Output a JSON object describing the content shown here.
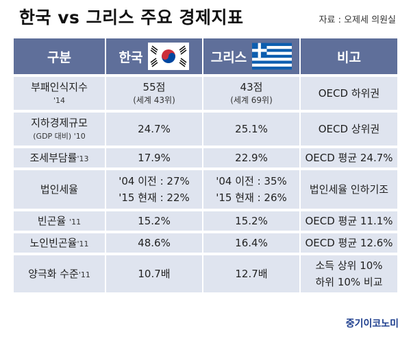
{
  "title": "한국 vs 그리스 주요 경제지표",
  "source": "자료 : 오제세 의원실",
  "brand": "중기이코노미",
  "columns": [
    "구분",
    "한국",
    "그리스",
    "비고"
  ],
  "rows": [
    {
      "label": "부패인식지수",
      "label_sub": "'14",
      "korea": "55점",
      "korea_sub": "(세계 43위)",
      "greece": "43점",
      "greece_sub": "(세계 69위)",
      "note": "OECD 하위권"
    },
    {
      "label": "지하경제규모",
      "label_sub": "(GDP 대비) '10",
      "korea": "24.7%",
      "greece": "25.1%",
      "note": "OECD 상위권"
    },
    {
      "label": "조세부담률",
      "label_sub": "'13",
      "korea": "17.9%",
      "greece": "22.9%",
      "note": "OECD 평균 24.7%"
    },
    {
      "label": "법인세율",
      "korea_1": "'04 이전 : 27%",
      "korea_2": "'15 현재 : 22%",
      "greece_1": "'04 이전 : 35%",
      "greece_2": "'15 현재 : 26%",
      "note": "법인세율 인하기조"
    },
    {
      "label": "빈곤율",
      "label_sub": "'11",
      "korea": "15.2%",
      "greece": "15.2%",
      "note": "OECD 평균 11.1%"
    },
    {
      "label": "노인빈곤율",
      "label_sub": "'11",
      "korea": "48.6%",
      "greece": "16.4%",
      "note": "OECD 평균 12.6%"
    },
    {
      "label": "양극화 수준",
      "label_sub": "'11",
      "korea": "10.7배",
      "greece": "12.7배",
      "note_1": "소득 상위 10%",
      "note_2": "하위 10% 비교"
    }
  ],
  "icons": {
    "korea_flag": "south-korea-flag",
    "greece_flag": "greece-flag"
  },
  "colors": {
    "header_bg": "#5f6f9a",
    "cell_bg": "#dfe4ef",
    "brand": "#1e3f8e"
  }
}
